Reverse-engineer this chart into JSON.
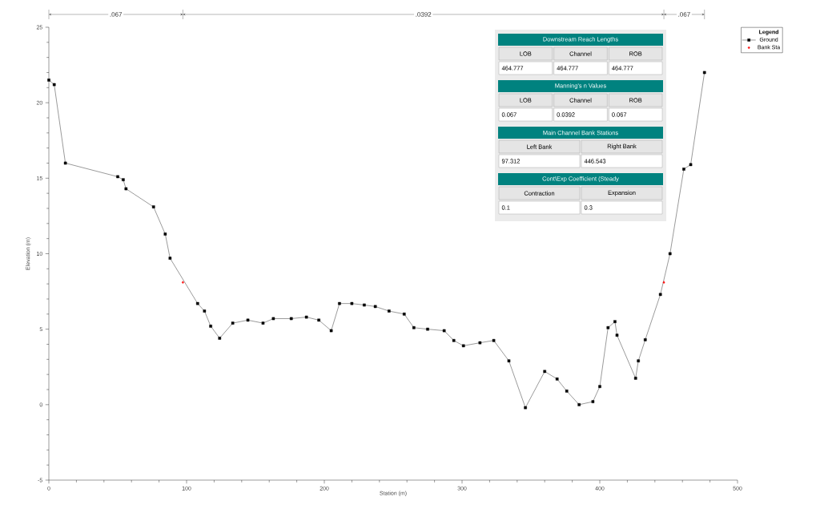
{
  "chart_data": {
    "type": "line",
    "xlabel": "Station (m)",
    "ylabel": "Elevation (m)",
    "xlim": [
      0,
      500
    ],
    "xticks": [
      0,
      100,
      200,
      300,
      400,
      500
    ],
    "ylim": [
      -5,
      25
    ],
    "yticks": [
      -5,
      0,
      5,
      10,
      15,
      20,
      25
    ],
    "grid": false,
    "legend": "top right",
    "legend_title": "Legend",
    "marker": "square",
    "line_style": "solid",
    "series": [
      {
        "name": "Ground",
        "color": "#000000",
        "x": [
          0,
          3.9,
          12,
          50,
          54,
          56,
          76,
          84.5,
          88,
          108,
          113,
          117.5,
          124,
          133.5,
          144.5,
          155.5,
          163,
          176,
          187,
          196,
          205,
          211,
          220,
          229,
          237,
          247,
          258,
          265,
          275,
          287,
          294,
          301,
          313,
          323,
          334,
          346,
          360,
          369,
          376,
          385,
          395,
          400,
          406,
          411,
          412.5,
          426,
          428,
          433,
          444,
          451,
          461,
          466,
          476
        ],
        "values": [
          21.5,
          21.2,
          16.0,
          15.1,
          14.9,
          14.3,
          13.1,
          11.3,
          9.7,
          6.7,
          6.2,
          5.2,
          4.4,
          5.4,
          5.6,
          5.4,
          5.7,
          5.7,
          5.8,
          5.6,
          4.9,
          6.7,
          6.7,
          6.6,
          6.5,
          6.2,
          6.0,
          5.1,
          5.0,
          4.9,
          4.25,
          3.9,
          4.1,
          4.25,
          2.9,
          -0.2,
          2.2,
          1.7,
          0.9,
          0.0,
          0.2,
          1.2,
          5.1,
          5.5,
          4.6,
          1.75,
          2.9,
          4.3,
          7.3,
          10.0,
          15.6,
          15.9,
          22.0
        ]
      },
      {
        "name": "Bank Sta",
        "type": "scatter",
        "marker": "diamond",
        "color": "#ff0000",
        "x": [
          97.312,
          446.543
        ],
        "values": [
          8.1,
          8.1
        ]
      }
    ],
    "annotations": [
      ".067",
      ".0392",
      ".067",
      "Downstream Reach Lengths",
      "LOB",
      "Channel",
      "ROB",
      "464.777",
      "464.777",
      "464.777",
      "Manning's n Values",
      "LOB",
      "Channel",
      "ROB",
      "0.067",
      "0.0392",
      "0.067",
      "Main Channel Bank Stations",
      "Left Bank",
      "Right Bank",
      "97.312",
      "446.543",
      "Cont\\Exp Coefficient (Steady",
      "Contraction",
      "Expansion",
      "0.1",
      "0.3"
    ]
  }
}
